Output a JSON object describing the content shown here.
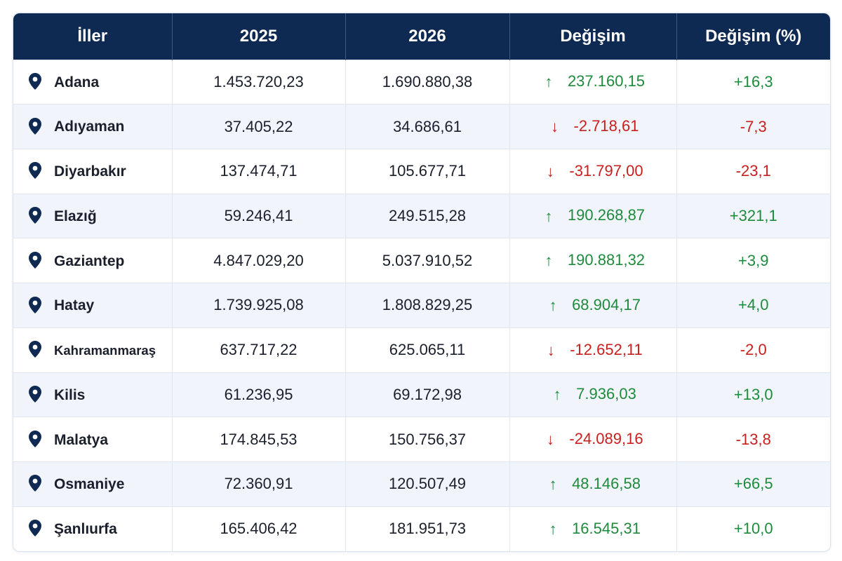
{
  "table": {
    "headers": [
      "İller",
      "2025",
      "2026",
      "Değişim",
      "Değişim (%)"
    ],
    "colors": {
      "header_bg": "#0e2a52",
      "positive": "#1e8a3c",
      "negative": "#c8201e",
      "row_alt": "#f1f5fb"
    },
    "rows": [
      {
        "province": "Adana",
        "y2025": "1.453.720,23",
        "y2026": "1.690.880,38",
        "direction": "up",
        "arrow": "↑",
        "change": "237.160,15",
        "pct": "+16,3"
      },
      {
        "province": "Adıyaman",
        "y2025": "37.405,22",
        "y2026": "34.686,61",
        "direction": "down",
        "arrow": "↓",
        "change": "-2.718,61",
        "pct": "-7,3"
      },
      {
        "province": "Diyarbakır",
        "y2025": "137.474,71",
        "y2026": "105.677,71",
        "direction": "down",
        "arrow": "↓",
        "change": "-31.797,00",
        "pct": "-23,1"
      },
      {
        "province": "Elazığ",
        "y2025": "59.246,41",
        "y2026": "249.515,28",
        "direction": "up",
        "arrow": "↑",
        "change": "190.268,87",
        "pct": "+321,1"
      },
      {
        "province": "Gaziantep",
        "y2025": "4.847.029,20",
        "y2026": "5.037.910,52",
        "direction": "up",
        "arrow": "↑",
        "change": "190.881,32",
        "pct": "+3,9"
      },
      {
        "province": "Hatay",
        "y2025": "1.739.925,08",
        "y2026": "1.808.829,25",
        "direction": "up",
        "arrow": "↑",
        "change": "68.904,17",
        "pct": "+4,0"
      },
      {
        "province": "Kahramanmaraş",
        "y2025": "637.717,22",
        "y2026": "625.065,11",
        "direction": "down",
        "arrow": "↓",
        "change": "-12.652,11",
        "pct": "-2,0"
      },
      {
        "province": "Kilis",
        "y2025": "61.236,95",
        "y2026": "69.172,98",
        "direction": "up",
        "arrow": "↑",
        "change": "7.936,03",
        "pct": "+13,0"
      },
      {
        "province": "Malatya",
        "y2025": "174.845,53",
        "y2026": "150.756,37",
        "direction": "down",
        "arrow": "↓",
        "change": "-24.089,16",
        "pct": "-13,8"
      },
      {
        "province": "Osmaniye",
        "y2025": "72.360,91",
        "y2026": "120.507,49",
        "direction": "up",
        "arrow": "↑",
        "change": "48.146,58",
        "pct": "+66,5"
      },
      {
        "province": "Şanlıurfa",
        "y2025": "165.406,42",
        "y2026": "181.951,73",
        "direction": "up",
        "arrow": "↑",
        "change": "16.545,31",
        "pct": "+10,0"
      }
    ],
    "icons": {
      "row": "map-pin-icon",
      "up": "arrow-up-icon",
      "down": "arrow-down-icon"
    }
  }
}
